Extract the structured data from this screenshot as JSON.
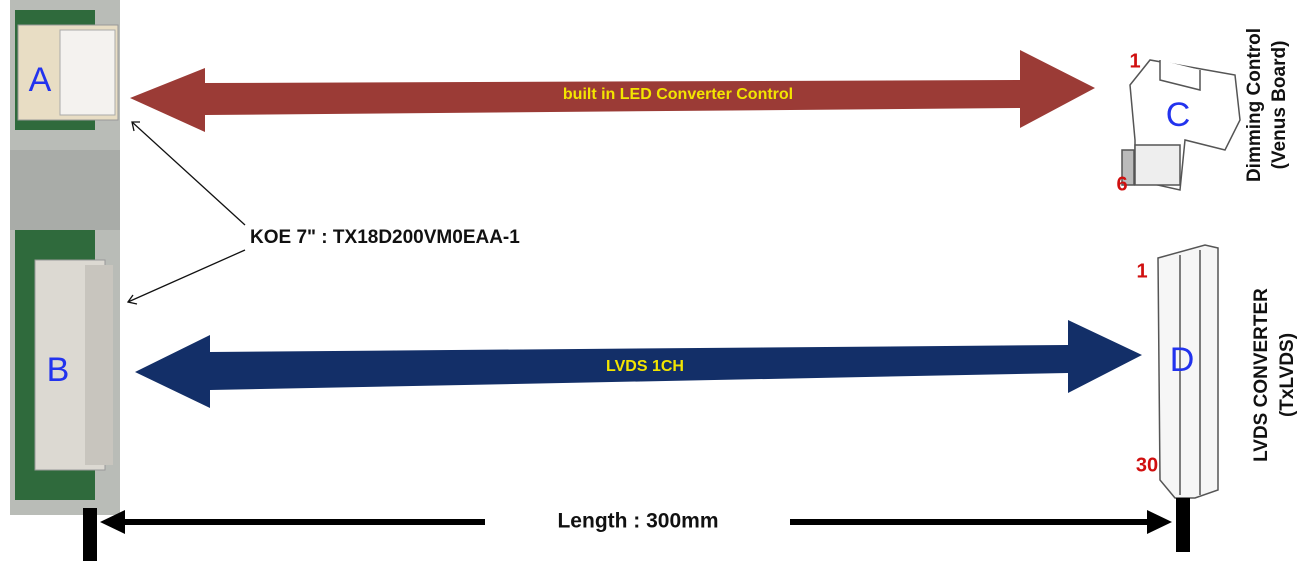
{
  "panel": {
    "connectors": [
      "A",
      "B"
    ],
    "model": "KOE 7\" : TX18D200VM0EAA-1"
  },
  "cables": [
    {
      "label": "built in LED Converter Control"
    },
    {
      "label": "LVDS 1CH"
    }
  ],
  "targets": [
    {
      "connector": "C",
      "pin_first": "1",
      "pin_last": "6",
      "title": "Dimming Control",
      "subtitle": "(Venus Board)"
    },
    {
      "connector": "D",
      "pin_first": "1",
      "pin_last": "30",
      "title": "LVDS CONVERTER",
      "subtitle": "(TxLVDS)"
    }
  ],
  "length": "Length : 300mm"
}
